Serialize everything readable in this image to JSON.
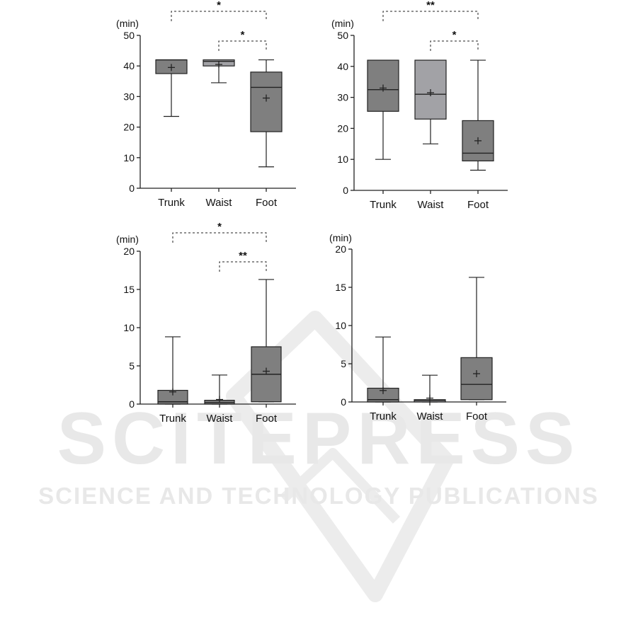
{
  "watermark": {
    "logo": "SCITEPRESS",
    "tagline": "SCIENCE AND TECHNOLOGY PUBLICATIONS",
    "color": "#e6e6e6"
  },
  "colors": {
    "dark_box": "#7f7f7f",
    "light_box": "#a2a2a6",
    "stroke": "#222222"
  },
  "chart_data": [
    {
      "type": "box",
      "unit": "(min)",
      "categories": [
        "Trunk",
        "Waist",
        "Foot"
      ],
      "ylim": [
        0,
        50
      ],
      "yticks": [
        0,
        10,
        20,
        30,
        40,
        50
      ],
      "boxes": [
        {
          "category": "Trunk",
          "min": 23.5,
          "q1": 37.5,
          "median": 42,
          "q3": 42,
          "max": 42,
          "mean": 39.5,
          "fill": "dark"
        },
        {
          "category": "Waist",
          "min": 34.5,
          "q1": 40,
          "median": 41.5,
          "q3": 42,
          "max": 42,
          "mean": 40.5,
          "fill": "light"
        },
        {
          "category": "Foot",
          "min": 7,
          "q1": 18.5,
          "median": 33,
          "q3": 38,
          "max": 42,
          "mean": 29.5,
          "fill": "dark"
        }
      ],
      "significance": [
        {
          "from": "Trunk",
          "to": "Foot",
          "label": "*",
          "level": 2
        },
        {
          "from": "Waist",
          "to": "Foot",
          "label": "*",
          "level": 1
        }
      ]
    },
    {
      "type": "box",
      "unit": "(min)",
      "categories": [
        "Trunk",
        "Waist",
        "Foot"
      ],
      "ylim": [
        0,
        50
      ],
      "yticks": [
        0,
        10,
        20,
        30,
        40,
        50
      ],
      "boxes": [
        {
          "category": "Trunk",
          "min": 10,
          "q1": 25.5,
          "median": 32.5,
          "q3": 42,
          "max": 42,
          "mean": 33,
          "fill": "dark"
        },
        {
          "category": "Waist",
          "min": 15,
          "q1": 23,
          "median": 31,
          "q3": 42,
          "max": 42,
          "mean": 31.5,
          "fill": "light"
        },
        {
          "category": "Foot",
          "min": 6.5,
          "q1": 9.5,
          "median": 12,
          "q3": 22.5,
          "max": 42,
          "mean": 16,
          "fill": "dark"
        }
      ],
      "significance": [
        {
          "from": "Trunk",
          "to": "Foot",
          "label": "**",
          "level": 2
        },
        {
          "from": "Waist",
          "to": "Foot",
          "label": "*",
          "level": 1
        }
      ]
    },
    {
      "type": "box",
      "unit": "(min)",
      "categories": [
        "Trunk",
        "Waist",
        "Foot"
      ],
      "ylim": [
        0,
        20
      ],
      "yticks": [
        0,
        5,
        10,
        15,
        20
      ],
      "boxes": [
        {
          "category": "Trunk",
          "min": 0,
          "q1": 0,
          "median": 0.3,
          "q3": 1.8,
          "max": 8.8,
          "mean": 1.6,
          "fill": "dark"
        },
        {
          "category": "Waist",
          "min": 0,
          "q1": 0,
          "median": 0.2,
          "q3": 0.5,
          "max": 3.8,
          "mean": 0.6,
          "fill": "dark"
        },
        {
          "category": "Foot",
          "min": 0.3,
          "q1": 0.3,
          "median": 3.9,
          "q3": 7.5,
          "max": 16.3,
          "mean": 4.3,
          "fill": "dark"
        }
      ],
      "significance": [
        {
          "from": "Trunk",
          "to": "Foot",
          "label": "*",
          "level": 2
        },
        {
          "from": "Waist",
          "to": "Foot",
          "label": "**",
          "level": 1
        }
      ]
    },
    {
      "type": "box",
      "unit": "(min)",
      "categories": [
        "Trunk",
        "Waist",
        "Foot"
      ],
      "ylim": [
        0,
        20
      ],
      "yticks": [
        0,
        5,
        10,
        15,
        20
      ],
      "boxes": [
        {
          "category": "Trunk",
          "min": 0,
          "q1": 0,
          "median": 0.3,
          "q3": 1.8,
          "max": 8.5,
          "mean": 1.5,
          "fill": "dark"
        },
        {
          "category": "Waist",
          "min": 0,
          "q1": 0,
          "median": 0.2,
          "q3": 0.3,
          "max": 3.5,
          "mean": 0.5,
          "fill": "light"
        },
        {
          "category": "Foot",
          "min": 0.3,
          "q1": 0.3,
          "median": 2.3,
          "q3": 5.8,
          "max": 16.3,
          "mean": 3.7,
          "fill": "dark"
        }
      ],
      "significance": []
    }
  ]
}
